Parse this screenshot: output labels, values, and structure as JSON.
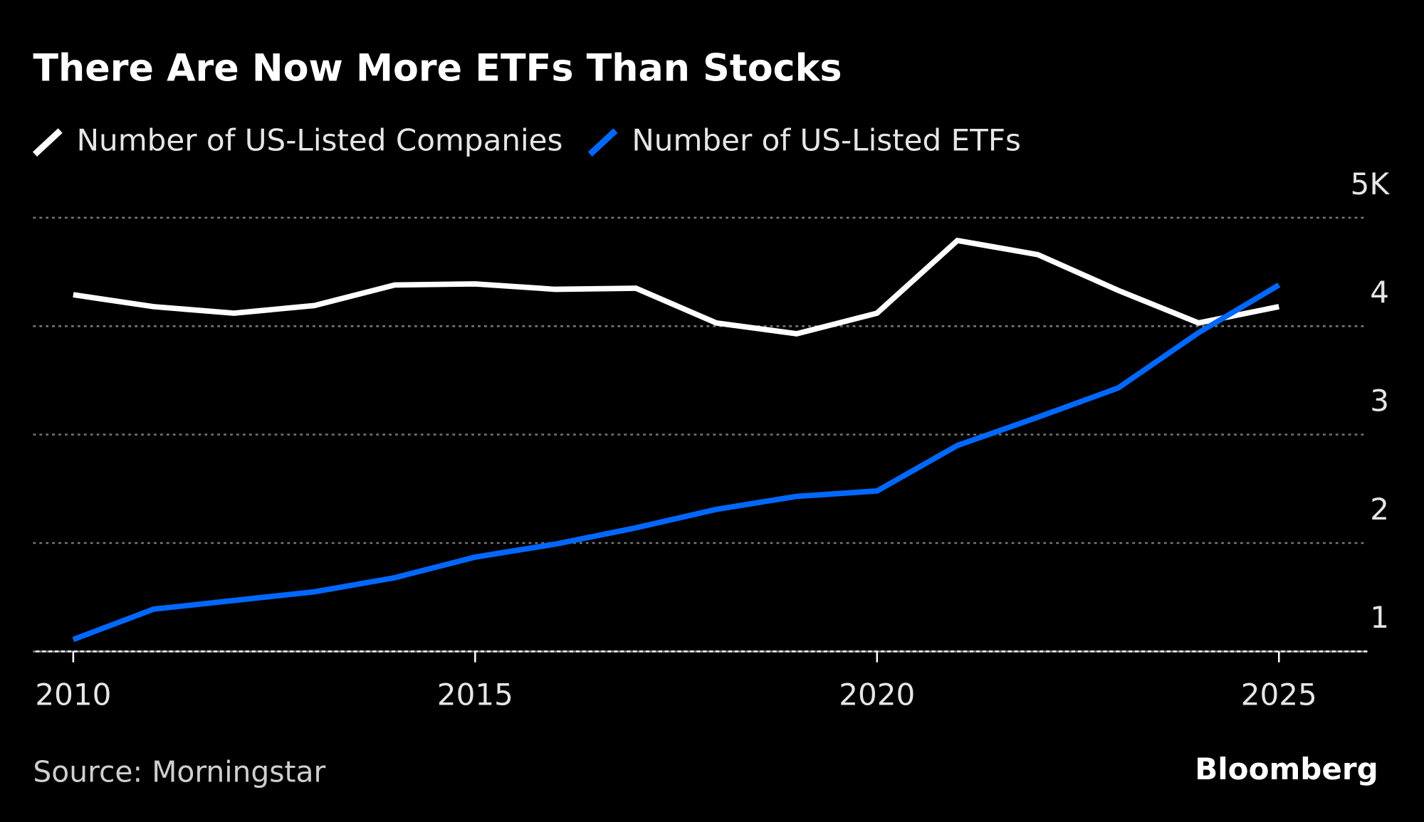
{
  "chart_data": {
    "type": "line",
    "title": "There Are Now More ETFs Than Stocks",
    "source": "Source: Morningstar",
    "logo": "Bloomberg",
    "x": [
      2010,
      2011,
      2012,
      2013,
      2014,
      2015,
      2016,
      2017,
      2018,
      2019,
      2020,
      2021,
      2022,
      2023,
      2024,
      2025
    ],
    "series": [
      {
        "name": "Number of US-Listed Companies",
        "color": "#ffffff",
        "values": [
          4.29,
          4.18,
          4.12,
          4.19,
          4.38,
          4.39,
          4.34,
          4.35,
          4.03,
          3.93,
          4.12,
          4.79,
          4.66,
          4.33,
          4.03,
          4.18
        ]
      },
      {
        "name": "Number of US-Listed ETFs",
        "color": "#0068ff",
        "values": [
          1.11,
          1.39,
          1.47,
          1.55,
          1.68,
          1.87,
          1.99,
          2.14,
          2.31,
          2.43,
          2.48,
          2.9,
          3.16,
          3.43,
          3.94,
          4.38
        ]
      }
    ],
    "xlim": [
      2009.5,
      2026.1
    ],
    "xticks": [
      2010,
      2015,
      2020,
      2025
    ],
    "ylim": [
      1,
      5
    ],
    "yticks": [
      {
        "value": 5,
        "label": "5K"
      },
      4,
      3,
      2,
      1
    ],
    "grid": true
  }
}
